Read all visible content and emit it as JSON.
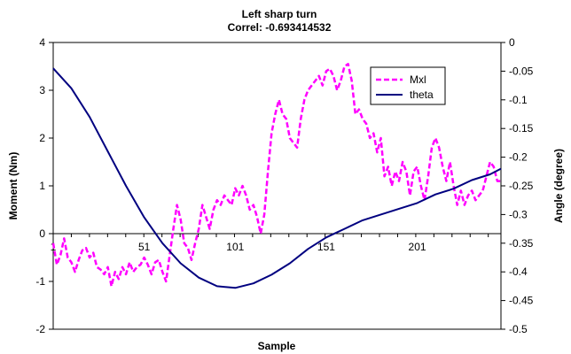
{
  "chart_data": {
    "type": "line",
    "title": "Left sharp turn",
    "subtitle": "Correl: -0.693414532",
    "xlabel": "Sample",
    "ylabel": "Moment (Nm)",
    "y2label": "Angle (degree)",
    "xlim": [
      1,
      247
    ],
    "ylim": [
      -2,
      4
    ],
    "y2lim": [
      -0.5,
      0
    ],
    "xticks": [
      "1",
      "51",
      "101",
      "151",
      "201"
    ],
    "xtick_values": [
      1,
      51,
      101,
      151,
      201
    ],
    "yticks": [
      "-2",
      "-1",
      "0",
      "1",
      "2",
      "3",
      "4"
    ],
    "ytick_values": [
      -2,
      -1,
      0,
      1,
      2,
      3,
      4
    ],
    "y2ticks": [
      "0",
      "-0.05",
      "-0.1",
      "-0.15",
      "-0.2",
      "-0.25",
      "-0.3",
      "-0.35",
      "-0.4",
      "-0.45",
      "-0.5"
    ],
    "y2tick_values": [
      0,
      -0.05,
      -0.1,
      -0.15,
      -0.2,
      -0.25,
      -0.3,
      -0.35,
      -0.4,
      -0.45,
      -0.5
    ],
    "legend": {
      "position": "top-right",
      "entries": [
        "Mxl",
        "theta"
      ]
    },
    "grid": false,
    "series": [
      {
        "name": "Mxl",
        "axis": "left",
        "color": "#ff00ff",
        "style": "dashed",
        "x": [
          1,
          3,
          5,
          7,
          9,
          11,
          13,
          15,
          17,
          19,
          21,
          23,
          25,
          27,
          29,
          31,
          33,
          35,
          37,
          39,
          41,
          43,
          45,
          47,
          49,
          51,
          53,
          55,
          57,
          59,
          61,
          63,
          65,
          67,
          69,
          71,
          73,
          75,
          77,
          79,
          81,
          83,
          85,
          87,
          89,
          91,
          93,
          95,
          97,
          99,
          101,
          103,
          105,
          107,
          109,
          111,
          113,
          115,
          117,
          119,
          121,
          123,
          125,
          127,
          129,
          131,
          133,
          135,
          137,
          139,
          141,
          143,
          145,
          147,
          149,
          151,
          153,
          155,
          157,
          159,
          161,
          163,
          165,
          167,
          169,
          171,
          173,
          175,
          177,
          179,
          181,
          183,
          185,
          187,
          189,
          191,
          193,
          195,
          197,
          199,
          201,
          203,
          205,
          207,
          209,
          211,
          213,
          215,
          217,
          219,
          221,
          223,
          225,
          227,
          229,
          231,
          233,
          235,
          237,
          239,
          241,
          243,
          245,
          247
        ],
        "values": [
          -0.2,
          -0.65,
          -0.45,
          -0.1,
          -0.5,
          -0.6,
          -0.8,
          -0.55,
          -0.35,
          -0.3,
          -0.5,
          -0.4,
          -0.7,
          -0.75,
          -0.85,
          -0.7,
          -1.1,
          -0.8,
          -0.95,
          -0.7,
          -0.85,
          -0.6,
          -0.8,
          -0.7,
          -0.65,
          -0.5,
          -0.65,
          -0.85,
          -0.6,
          -0.55,
          -0.8,
          -1.0,
          -0.45,
          0.1,
          0.6,
          0.3,
          -0.2,
          -0.3,
          -0.55,
          -0.2,
          0.1,
          0.6,
          0.35,
          0.1,
          0.5,
          0.7,
          0.6,
          0.8,
          0.7,
          0.6,
          0.95,
          0.8,
          1.0,
          0.8,
          0.5,
          0.6,
          0.35,
          0.0,
          0.4,
          1.3,
          2.1,
          2.5,
          2.8,
          2.5,
          2.4,
          2.0,
          1.9,
          1.8,
          2.4,
          2.8,
          3.0,
          3.1,
          3.2,
          3.3,
          3.1,
          3.4,
          3.45,
          3.3,
          3.0,
          3.2,
          3.5,
          3.55,
          3.2,
          2.5,
          2.6,
          2.4,
          2.3,
          2.0,
          2.1,
          1.7,
          2.0,
          1.2,
          1.4,
          1.0,
          1.3,
          1.1,
          1.5,
          1.3,
          0.8,
          1.3,
          1.4,
          1.0,
          0.7,
          1.2,
          1.8,
          2.0,
          1.8,
          1.4,
          1.1,
          1.5,
          1.0,
          0.6,
          0.9,
          0.6,
          0.8,
          0.9,
          0.7,
          0.8,
          0.9,
          1.2,
          1.5,
          1.4,
          1.1,
          1.1
        ]
      },
      {
        "name": "theta",
        "axis": "right",
        "color": "#000080",
        "style": "solid",
        "x": [
          1,
          11,
          21,
          31,
          41,
          51,
          61,
          71,
          81,
          91,
          101,
          111,
          121,
          131,
          141,
          151,
          161,
          171,
          181,
          191,
          201,
          211,
          221,
          231,
          241,
          247
        ],
        "values": [
          -0.045,
          -0.08,
          -0.13,
          -0.19,
          -0.25,
          -0.305,
          -0.35,
          -0.385,
          -0.41,
          -0.425,
          -0.428,
          -0.42,
          -0.405,
          -0.385,
          -0.36,
          -0.34,
          -0.325,
          -0.31,
          -0.3,
          -0.29,
          -0.28,
          -0.265,
          -0.255,
          -0.24,
          -0.23,
          -0.22
        ]
      }
    ]
  }
}
